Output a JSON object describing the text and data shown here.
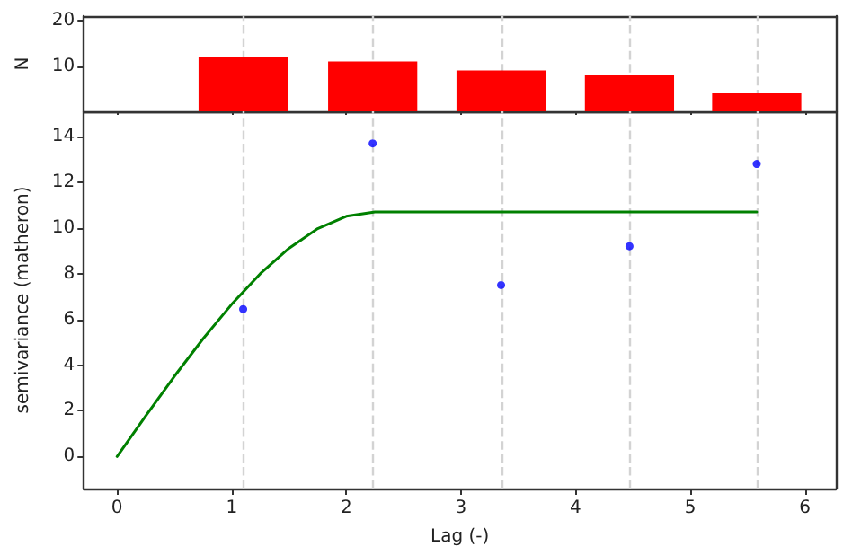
{
  "chart_data": [
    {
      "type": "bar",
      "ylabel": "N",
      "x": [
        1.1,
        2.23,
        3.35,
        4.47,
        5.58
      ],
      "values": [
        12,
        11,
        9,
        8,
        4
      ],
      "color": "#ff0000",
      "xlim": [
        -0.29,
        6.27
      ],
      "xticks": [
        0,
        1,
        2,
        3,
        4,
        5,
        6
      ],
      "ylim": [
        0,
        21
      ],
      "yticks": [
        10,
        20
      ],
      "tick_labels": "y",
      "grid": false,
      "ref_lines": [
        {
          "axis": "x",
          "value": 1.1,
          "color": "#d3d3d3",
          "line_style": "dashed"
        },
        {
          "axis": "x",
          "value": 2.23,
          "color": "#d3d3d3",
          "line_style": "dashed"
        },
        {
          "axis": "x",
          "value": 3.35,
          "color": "#d3d3d3",
          "line_style": "dashed"
        },
        {
          "axis": "x",
          "value": 4.47,
          "color": "#d3d3d3",
          "line_style": "dashed"
        },
        {
          "axis": "x",
          "value": 5.58,
          "color": "#d3d3d3",
          "line_style": "dashed"
        }
      ]
    },
    {
      "type": "scatter",
      "xlabel": "Lag (-)",
      "ylabel": "semivariance (matheron)",
      "x": [
        1.1,
        2.23,
        3.35,
        4.47,
        5.58
      ],
      "series": [
        {
          "color": "#0000ff",
          "marker": "circle",
          "values": [
            6.45,
            13.7,
            7.5,
            9.2,
            12.8
          ]
        },
        {
          "type": "line",
          "color": "#008000",
          "line_style": "solid",
          "marker": "none",
          "x": [
            0,
            0.25,
            0.5,
            0.75,
            1.0,
            1.25,
            1.5,
            1.75,
            2.0,
            2.25,
            5.58
          ],
          "values": [
            0,
            1.78,
            3.51,
            5.15,
            6.66,
            8.0,
            9.11,
            9.97,
            10.51,
            10.7,
            10.7
          ]
        }
      ],
      "xlim": [
        -0.29,
        6.27
      ],
      "xticks": [
        0,
        1,
        2,
        3,
        4,
        5,
        6
      ],
      "ylim": [
        -1.4,
        15.1
      ],
      "yticks": [
        0,
        2,
        4,
        6,
        8,
        10,
        12,
        14
      ],
      "grid": false,
      "ref_lines": [
        {
          "axis": "x",
          "value": 1.1,
          "color": "#d3d3d3",
          "line_style": "dashed"
        },
        {
          "axis": "x",
          "value": 2.23,
          "color": "#d3d3d3",
          "line_style": "dashed"
        },
        {
          "axis": "x",
          "value": 3.35,
          "color": "#d3d3d3",
          "line_style": "dashed"
        },
        {
          "axis": "x",
          "value": 4.47,
          "color": "#d3d3d3",
          "line_style": "dashed"
        },
        {
          "axis": "x",
          "value": 5.58,
          "color": "#d3d3d3",
          "line_style": "dashed"
        }
      ]
    }
  ]
}
